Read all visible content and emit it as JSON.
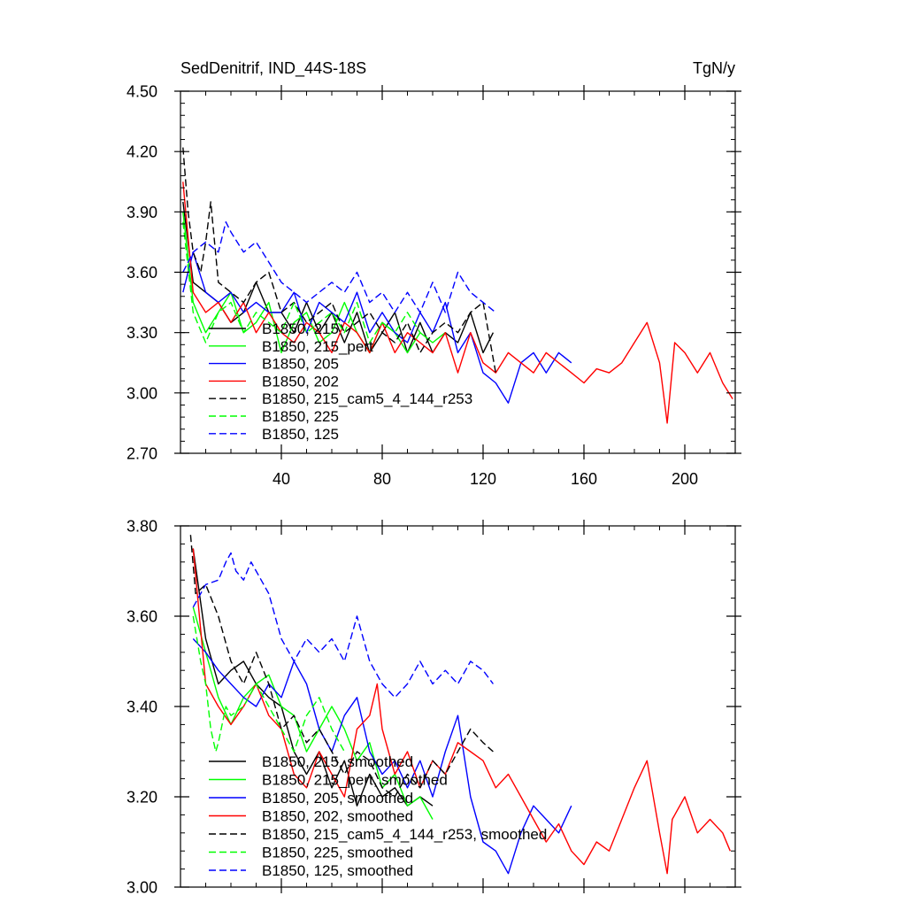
{
  "chart_data": [
    {
      "type": "line",
      "title": "SedDenitrif, IND_44S-18S",
      "units": "TgN/y",
      "xlabel": "",
      "ylabel": "",
      "xlim": [
        0,
        220
      ],
      "ylim": [
        2.7,
        4.5
      ],
      "xticks": [
        40,
        80,
        120,
        160,
        200
      ],
      "xtick_labels": [
        "40",
        "80",
        "120",
        "160",
        "200"
      ],
      "yticks": [
        2.7,
        3.0,
        3.3,
        3.6,
        3.9,
        4.2,
        4.5
      ],
      "ytick_labels": [
        "2.70",
        "3.00",
        "3.30",
        "3.60",
        "3.90",
        "4.20",
        "4.50"
      ],
      "legend_position": "bottom-left",
      "series": [
        {
          "name": "B1850, 215",
          "color": "#000000",
          "dash": "solid",
          "x": [
            1,
            5,
            10,
            15,
            20,
            25,
            30,
            35,
            40,
            45,
            50,
            55,
            60,
            65,
            70,
            75,
            80,
            85,
            90,
            95,
            100,
            105,
            110,
            115,
            120,
            124
          ],
          "y": [
            3.95,
            3.55,
            3.5,
            3.45,
            3.35,
            3.4,
            3.55,
            3.4,
            3.4,
            3.3,
            3.45,
            3.3,
            3.4,
            3.25,
            3.4,
            3.2,
            3.3,
            3.4,
            3.2,
            3.35,
            3.2,
            3.3,
            3.25,
            3.4,
            3.2,
            3.3
          ]
        },
        {
          "name": "B1850, 215_pert",
          "color": "#00ff00",
          "dash": "solid",
          "x": [
            1,
            5,
            10,
            15,
            20,
            25,
            30,
            35,
            40,
            45,
            50,
            55,
            60,
            65,
            70,
            75,
            80,
            85,
            90,
            95,
            100,
            105
          ],
          "y": [
            3.9,
            3.45,
            3.3,
            3.4,
            3.5,
            3.3,
            3.35,
            3.45,
            3.2,
            3.35,
            3.4,
            3.25,
            3.3,
            3.45,
            3.3,
            3.2,
            3.35,
            3.3,
            3.2,
            3.3,
            3.25,
            3.3
          ]
        },
        {
          "name": "B1850, 205",
          "color": "#0000ff",
          "dash": "solid",
          "x": [
            1,
            5,
            10,
            15,
            20,
            25,
            30,
            35,
            40,
            45,
            50,
            55,
            60,
            65,
            70,
            75,
            80,
            85,
            90,
            95,
            100,
            105,
            110,
            115,
            120,
            125,
            130,
            135,
            140,
            145,
            150,
            155
          ],
          "y": [
            3.5,
            3.7,
            3.5,
            3.45,
            3.5,
            3.4,
            3.45,
            3.4,
            3.4,
            3.5,
            3.3,
            3.45,
            3.4,
            3.35,
            3.5,
            3.3,
            3.4,
            3.3,
            3.25,
            3.4,
            3.3,
            3.45,
            3.2,
            3.3,
            3.1,
            3.05,
            2.95,
            3.15,
            3.2,
            3.1,
            3.2,
            3.15
          ]
        },
        {
          "name": "B1850, 202",
          "color": "#ff0000",
          "dash": "solid",
          "x": [
            1,
            5,
            10,
            15,
            20,
            25,
            30,
            35,
            40,
            45,
            50,
            55,
            60,
            65,
            70,
            75,
            80,
            85,
            90,
            95,
            100,
            105,
            110,
            115,
            120,
            125,
            130,
            135,
            140,
            145,
            150,
            155,
            160,
            165,
            170,
            175,
            180,
            185,
            190,
            193,
            196,
            200,
            205,
            210,
            215,
            219
          ],
          "y": [
            4.05,
            3.5,
            3.4,
            3.45,
            3.35,
            3.45,
            3.3,
            3.4,
            3.3,
            3.25,
            3.35,
            3.3,
            3.2,
            3.35,
            3.3,
            3.2,
            3.35,
            3.2,
            3.3,
            3.25,
            3.2,
            3.3,
            3.1,
            3.3,
            3.15,
            3.1,
            3.2,
            3.15,
            3.1,
            3.2,
            3.15,
            3.1,
            3.05,
            3.12,
            3.1,
            3.15,
            3.25,
            3.35,
            3.15,
            2.85,
            3.25,
            3.2,
            3.1,
            3.2,
            3.05,
            2.97
          ]
        },
        {
          "name": "B1850, 215_cam5_4_144_r253",
          "color": "#000000",
          "dash": "dashed",
          "x": [
            1,
            3,
            5,
            8,
            10,
            12,
            15,
            20,
            25,
            30,
            35,
            40,
            45,
            50,
            55,
            60,
            65,
            70,
            75,
            80,
            85,
            90,
            95,
            100,
            105,
            110,
            115,
            120,
            125
          ],
          "y": [
            4.22,
            3.9,
            3.7,
            3.6,
            3.75,
            3.95,
            3.55,
            3.5,
            3.45,
            3.55,
            3.6,
            3.4,
            3.45,
            3.35,
            3.4,
            3.45,
            3.3,
            3.35,
            3.4,
            3.3,
            3.25,
            3.35,
            3.2,
            3.3,
            3.35,
            3.3,
            3.4,
            3.45,
            3.1
          ]
        },
        {
          "name": "B1850, 225",
          "color": "#00ff00",
          "dash": "dashed",
          "x": [
            1,
            5,
            10,
            15,
            20,
            25,
            30,
            35,
            40,
            45,
            50,
            55,
            60,
            65,
            70,
            75,
            80,
            85,
            90,
            95
          ],
          "y": [
            3.85,
            3.4,
            3.25,
            3.4,
            3.45,
            3.3,
            3.4,
            3.35,
            3.3,
            3.45,
            3.3,
            3.35,
            3.4,
            3.3,
            3.45,
            3.25,
            3.35,
            3.3,
            3.4,
            3.3
          ]
        },
        {
          "name": "B1850, 125",
          "color": "#0000ff",
          "dash": "dashed",
          "x": [
            1,
            5,
            10,
            15,
            18,
            20,
            25,
            30,
            35,
            40,
            45,
            50,
            55,
            60,
            65,
            70,
            75,
            80,
            85,
            90,
            95,
            100,
            105,
            110,
            115,
            120,
            125
          ],
          "y": [
            3.6,
            3.7,
            3.75,
            3.7,
            3.85,
            3.8,
            3.7,
            3.75,
            3.65,
            3.55,
            3.5,
            3.45,
            3.5,
            3.55,
            3.5,
            3.6,
            3.45,
            3.5,
            3.4,
            3.5,
            3.4,
            3.55,
            3.4,
            3.6,
            3.5,
            3.45,
            3.4
          ]
        }
      ]
    },
    {
      "type": "line",
      "title": "",
      "xlabel": "",
      "ylabel": "",
      "xlim": [
        0,
        220
      ],
      "ylim": [
        3.0,
        3.8
      ],
      "xticks": [
        40,
        80,
        120,
        160,
        200
      ],
      "xtick_labels": [
        "",
        "",
        "",
        "",
        ""
      ],
      "yticks": [
        3.0,
        3.2,
        3.4,
        3.6,
        3.8
      ],
      "ytick_labels": [
        "3.00",
        "3.20",
        "3.40",
        "3.60",
        "3.80"
      ],
      "legend_position": "bottom-left",
      "series": [
        {
          "name": "B1850, 215, smoothed",
          "color": "#000000",
          "dash": "solid",
          "x": [
            5,
            10,
            15,
            20,
            25,
            30,
            35,
            40,
            45,
            50,
            55,
            60,
            65,
            70,
            75,
            80,
            85,
            90,
            95,
            100
          ],
          "y": [
            3.75,
            3.55,
            3.45,
            3.48,
            3.5,
            3.45,
            3.42,
            3.4,
            3.3,
            3.25,
            3.3,
            3.22,
            3.28,
            3.18,
            3.25,
            3.2,
            3.22,
            3.18,
            3.2,
            3.18
          ]
        },
        {
          "name": "B1850, 215_pert, smoothed",
          "color": "#00ff00",
          "dash": "solid",
          "x": [
            5,
            10,
            15,
            20,
            25,
            30,
            35,
            40,
            45,
            50,
            55,
            60,
            65,
            70,
            75,
            80,
            85,
            90,
            95,
            100
          ],
          "y": [
            3.62,
            3.52,
            3.42,
            3.36,
            3.42,
            3.45,
            3.47,
            3.4,
            3.38,
            3.3,
            3.35,
            3.4,
            3.35,
            3.28,
            3.32,
            3.22,
            3.25,
            3.18,
            3.2,
            3.15
          ]
        },
        {
          "name": "B1850, 205, smoothed",
          "color": "#0000ff",
          "dash": "solid",
          "x": [
            5,
            10,
            15,
            20,
            25,
            30,
            35,
            40,
            45,
            50,
            55,
            60,
            65,
            70,
            75,
            80,
            85,
            90,
            95,
            100,
            105,
            110,
            115,
            120,
            125,
            130,
            135,
            140,
            145,
            150,
            155
          ],
          "y": [
            3.55,
            3.52,
            3.48,
            3.45,
            3.42,
            3.4,
            3.45,
            3.42,
            3.5,
            3.45,
            3.35,
            3.3,
            3.38,
            3.42,
            3.3,
            3.25,
            3.28,
            3.22,
            3.28,
            3.2,
            3.3,
            3.38,
            3.2,
            3.1,
            3.08,
            3.03,
            3.12,
            3.18,
            3.15,
            3.12,
            3.18
          ]
        },
        {
          "name": "B1850, 202, smoothed",
          "color": "#ff0000",
          "dash": "solid",
          "x": [
            5,
            10,
            15,
            20,
            25,
            30,
            35,
            40,
            45,
            50,
            55,
            60,
            65,
            70,
            75,
            78,
            80,
            85,
            90,
            95,
            100,
            105,
            110,
            115,
            120,
            125,
            130,
            135,
            140,
            145,
            150,
            155,
            160,
            165,
            170,
            175,
            180,
            185,
            190,
            193,
            195,
            200,
            205,
            210,
            215,
            218
          ],
          "y": [
            3.75,
            3.45,
            3.4,
            3.36,
            3.4,
            3.45,
            3.38,
            3.35,
            3.25,
            3.22,
            3.3,
            3.25,
            3.2,
            3.35,
            3.38,
            3.45,
            3.35,
            3.25,
            3.3,
            3.22,
            3.28,
            3.25,
            3.32,
            3.3,
            3.28,
            3.22,
            3.25,
            3.2,
            3.15,
            3.1,
            3.14,
            3.08,
            3.05,
            3.1,
            3.08,
            3.15,
            3.22,
            3.28,
            3.12,
            3.03,
            3.15,
            3.2,
            3.12,
            3.15,
            3.12,
            3.08
          ]
        },
        {
          "name": "B1850, 215_cam5_4_144_r253, smoothed",
          "color": "#000000",
          "dash": "dashed",
          "x": [
            4,
            6,
            10,
            15,
            20,
            25,
            30,
            35,
            40,
            45,
            50,
            55,
            60,
            65,
            70,
            75,
            80,
            85,
            90,
            95,
            100,
            105,
            110,
            115,
            120,
            124
          ],
          "y": [
            3.78,
            3.65,
            3.67,
            3.6,
            3.5,
            3.45,
            3.52,
            3.45,
            3.35,
            3.38,
            3.32,
            3.35,
            3.3,
            3.25,
            3.3,
            3.28,
            3.22,
            3.2,
            3.25,
            3.22,
            3.28,
            3.25,
            3.3,
            3.35,
            3.32,
            3.3
          ]
        },
        {
          "name": "B1850, 225, smoothed",
          "color": "#00ff00",
          "dash": "dashed",
          "x": [
            5,
            8,
            10,
            12,
            14,
            15,
            18,
            20,
            25,
            30,
            35,
            40,
            45,
            50,
            55,
            60,
            65
          ],
          "y": [
            3.6,
            3.5,
            3.45,
            3.35,
            3.3,
            3.32,
            3.4,
            3.38,
            3.4,
            3.45,
            3.4,
            3.35,
            3.3,
            3.38,
            3.42,
            3.35,
            3.3
          ]
        },
        {
          "name": "B1850, 125, smoothed",
          "color": "#0000ff",
          "dash": "dashed",
          "x": [
            5,
            10,
            15,
            18,
            20,
            22,
            25,
            28,
            30,
            35,
            40,
            45,
            50,
            55,
            60,
            65,
            70,
            75,
            80,
            85,
            90,
            95,
            100,
            105,
            110,
            115,
            120,
            124
          ],
          "y": [
            3.62,
            3.67,
            3.68,
            3.72,
            3.74,
            3.7,
            3.68,
            3.72,
            3.7,
            3.65,
            3.55,
            3.5,
            3.55,
            3.52,
            3.55,
            3.5,
            3.6,
            3.5,
            3.45,
            3.42,
            3.45,
            3.5,
            3.45,
            3.48,
            3.45,
            3.5,
            3.48,
            3.45
          ]
        }
      ]
    }
  ]
}
